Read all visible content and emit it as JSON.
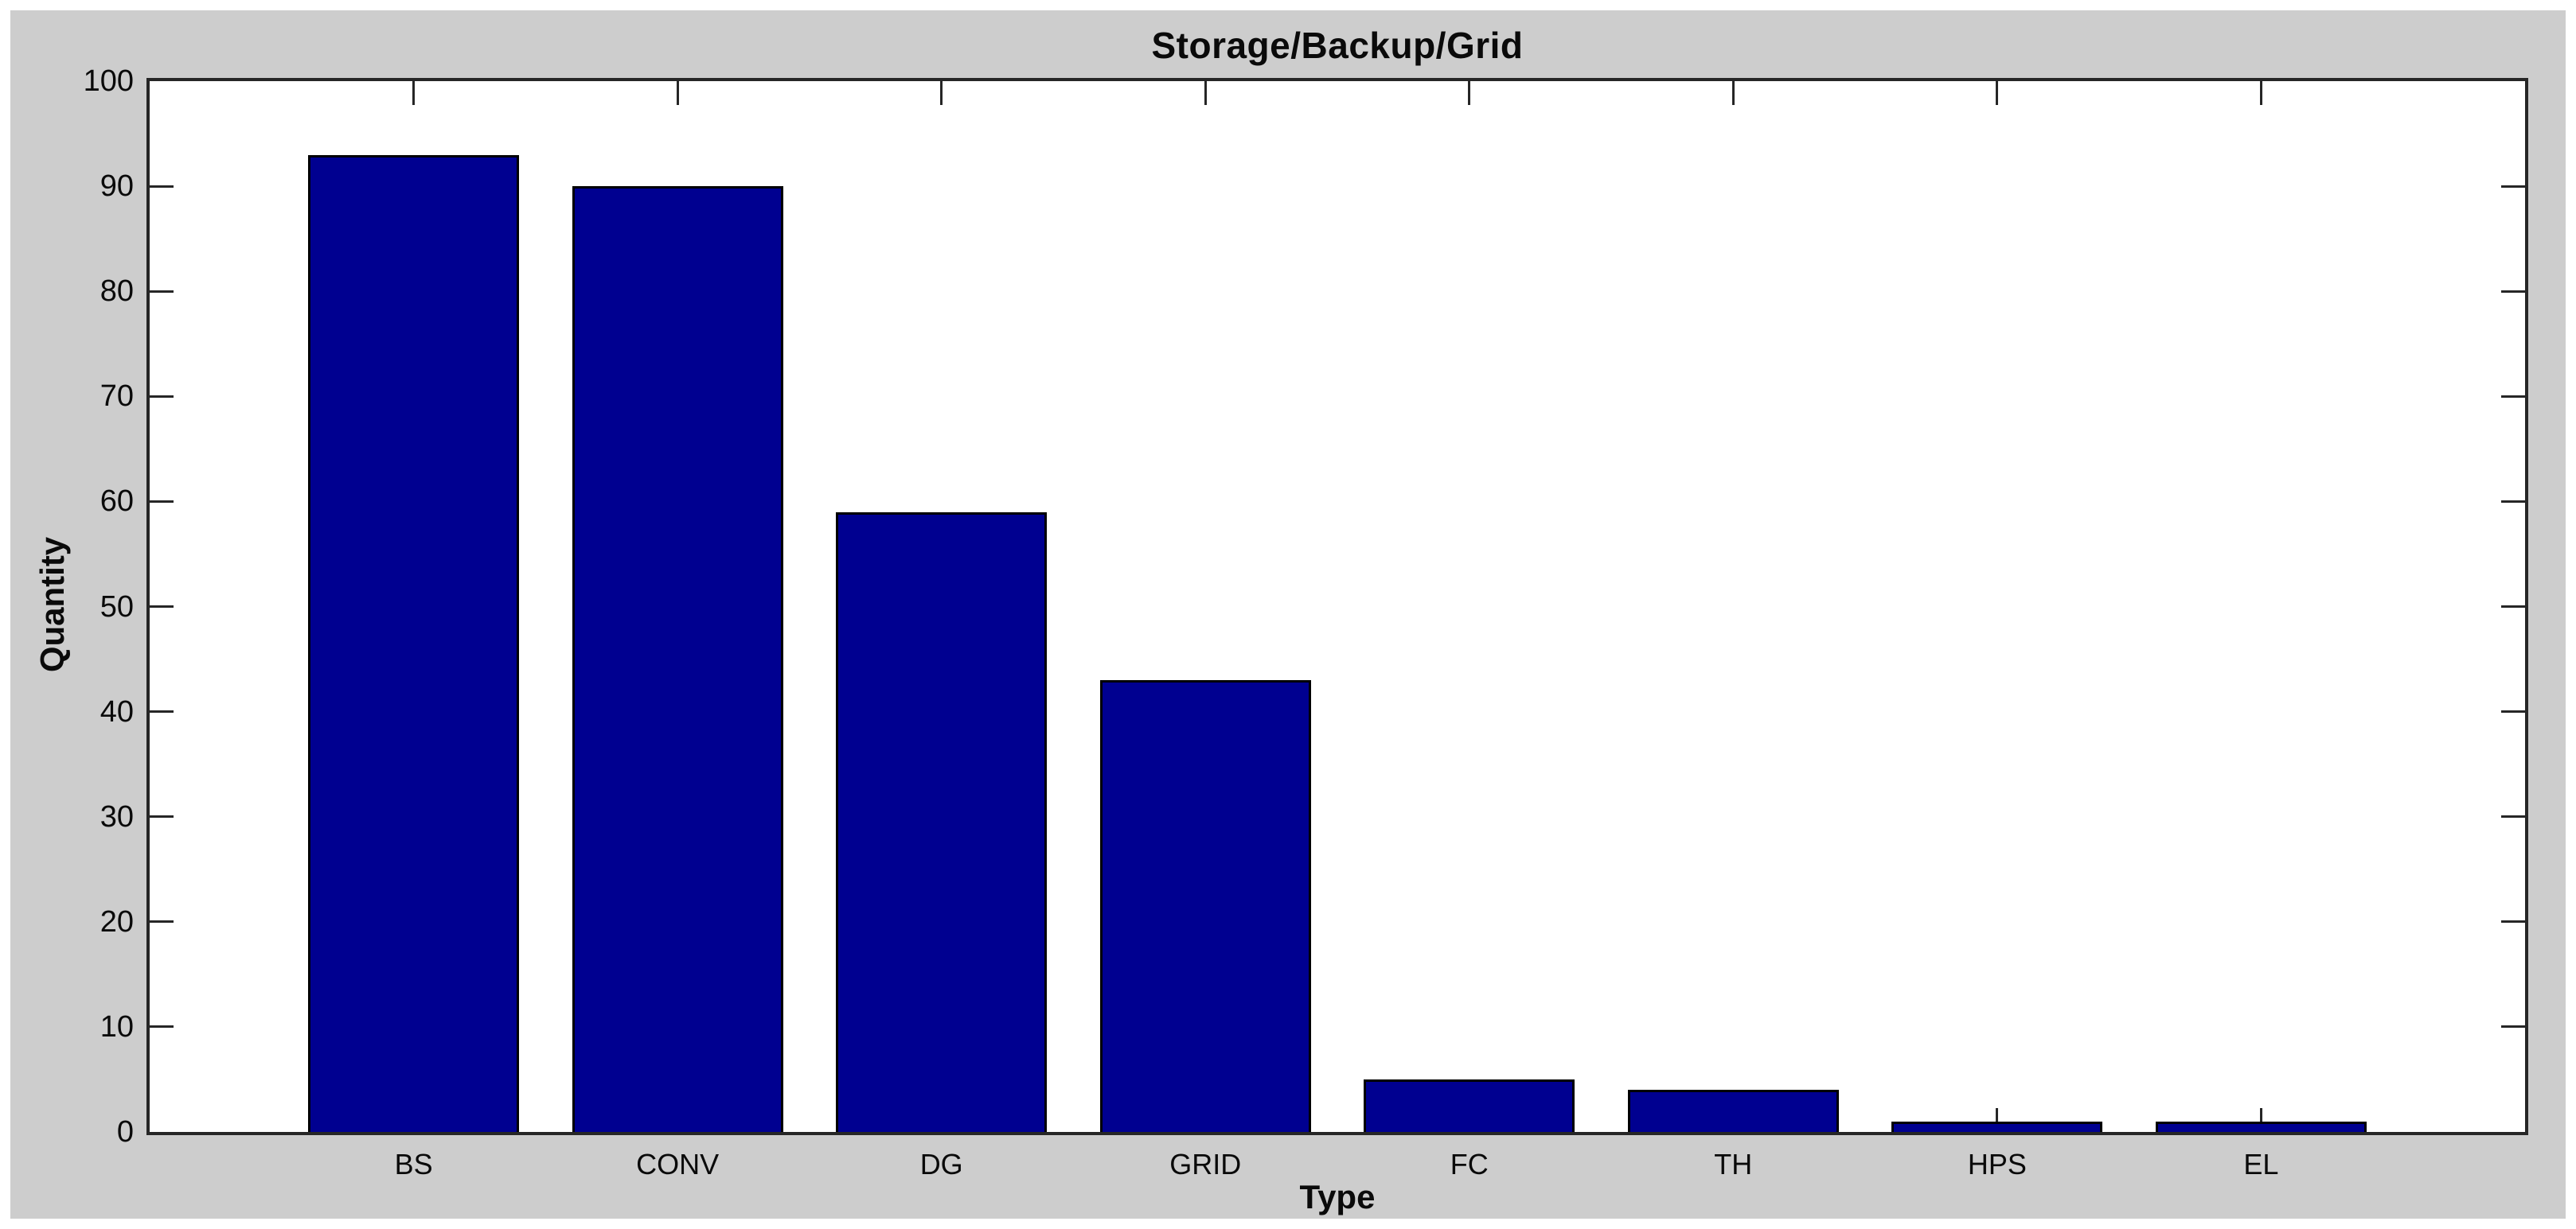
{
  "chart_data": {
    "type": "bar",
    "title": "Storage/Backup/Grid",
    "xlabel": "Type",
    "ylabel": "Quantity",
    "categories": [
      "BS",
      "CONV",
      "DG",
      "GRID",
      "FC",
      "TH",
      "HPS",
      "EL"
    ],
    "values": [
      93,
      90,
      59,
      43,
      5,
      4,
      1,
      1
    ],
    "ylim": [
      0,
      100
    ],
    "yticks": [
      0,
      10,
      20,
      30,
      40,
      50,
      60,
      70,
      80,
      90,
      100
    ],
    "xlim": [
      0,
      9
    ],
    "bar_width": 0.8,
    "grid": false,
    "legend": null,
    "tick_direction": "in",
    "colors": {
      "bar_fill": "#000090",
      "bar_edge": "#000000",
      "figure_bg": "#cdcdcd",
      "plot_bg": "#ffffff",
      "axis": "#262626",
      "text": "#0a0a0a"
    }
  }
}
